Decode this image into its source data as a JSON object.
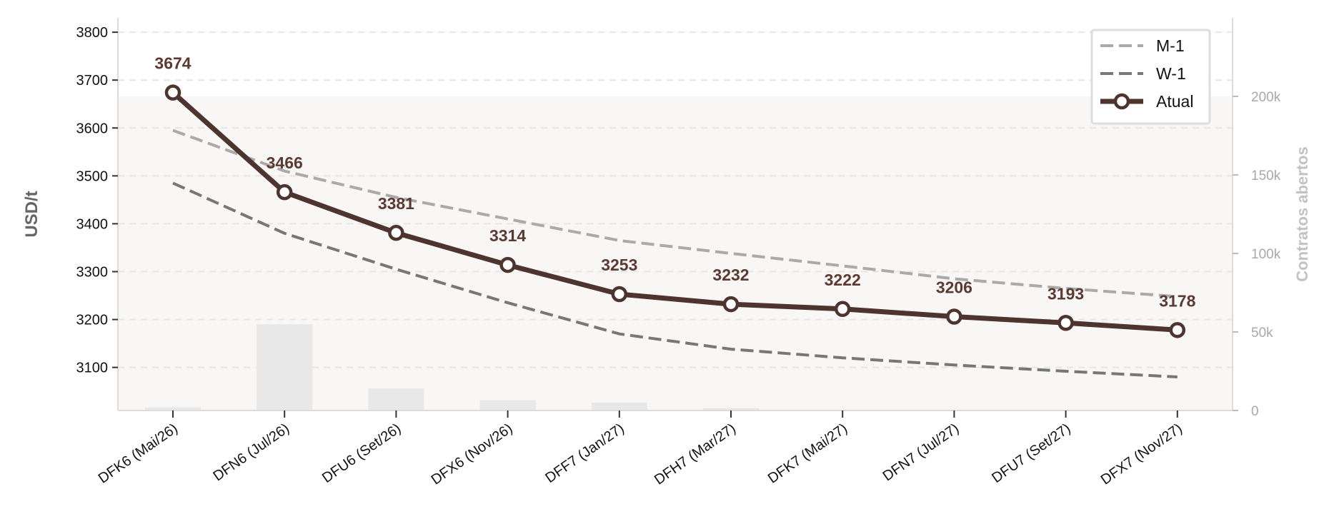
{
  "chart_data": {
    "type": "line",
    "ylabel": "USD/t",
    "y2label": "Contratos abertos",
    "categories": [
      "DFK6 (Mai/26)",
      "DFN6 (Jul/26)",
      "DFU6 (Set/26)",
      "DFX6 (Nov/26)",
      "DFF7 (Jan/27)",
      "DFH7 (Mar/27)",
      "DFK7 (Mai/27)",
      "DFN7 (Jul/27)",
      "DFU7 (Set/27)",
      "DFX7 (Nov/27)"
    ],
    "ylim": [
      3010,
      3830
    ],
    "yticks": [
      3100,
      3200,
      3300,
      3400,
      3500,
      3600,
      3700,
      3800
    ],
    "y2lim": [
      0,
      250000
    ],
    "y2ticks": [
      0,
      50000,
      100000,
      150000,
      200000
    ],
    "y2ticklabels": [
      "0",
      "50k",
      "100k",
      "150k",
      "200k"
    ],
    "grid": true,
    "legend_position": "top-right",
    "series": [
      {
        "name": "M-1",
        "style": "dashed",
        "color": "#aaaaaa",
        "values": [
          3595,
          3510,
          3455,
          3410,
          3365,
          3338,
          3312,
          3285,
          3265,
          3248
        ]
      },
      {
        "name": "W-1",
        "style": "dashed",
        "color": "#777777",
        "values": [
          3485,
          3380,
          3305,
          3235,
          3170,
          3138,
          3120,
          3105,
          3092,
          3080
        ]
      },
      {
        "name": "Atual",
        "style": "solid-markers",
        "color": "#4e342e",
        "values": [
          3674,
          3466,
          3381,
          3314,
          3253,
          3232,
          3222,
          3206,
          3193,
          3178
        ],
        "labels": [
          "3674",
          "3466",
          "3381",
          "3314",
          "3253",
          "3232",
          "3222",
          "3206",
          "3193",
          "3178"
        ]
      }
    ],
    "open_interest": {
      "name": "Contratos abertos",
      "color": "#e8e8e8",
      "values": [
        2000,
        55000,
        14000,
        6500,
        5000,
        1500,
        0,
        0,
        0,
        0
      ]
    },
    "area_background": {
      "color": "#f8f7f5",
      "values": [
        200000,
        200000,
        200000,
        200000,
        200000,
        200000,
        200000,
        200000,
        200000,
        200000
      ]
    }
  }
}
